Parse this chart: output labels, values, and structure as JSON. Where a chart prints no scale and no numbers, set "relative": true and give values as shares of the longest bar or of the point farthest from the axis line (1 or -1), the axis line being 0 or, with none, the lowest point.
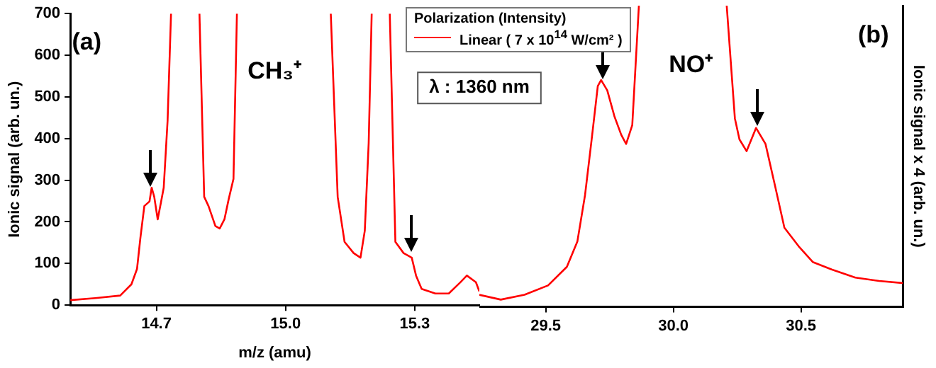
{
  "chart_data": [
    {
      "type": "line",
      "ylabel": "Ionic signal (arb. un.)",
      "xlabel": "m/z (amu)",
      "legend": "top right",
      "legend_title": "Polarization (Intensity)",
      "grid": false,
      "marker": "none",
      "annotations": [
        "(a)",
        "CH₃⁺",
        "λ : 1360 nm"
      ],
      "xlim": [
        14.5,
        15.45
      ],
      "xticks": [
        14.7,
        {
          "value": 15.0,
          "label": "15.0"
        },
        15.3
      ],
      "ylim": [
        0,
        700
      ],
      "yticks": [
        0,
        100,
        200,
        300,
        400,
        500,
        600,
        700
      ],
      "series": [
        {
          "name": "Linear ( 7 x 10$^{14}$ W/cm² )",
          "color": "#ff0000",
          "x": [
            14.5,
            14.558,
            14.616,
            14.642,
            14.655,
            14.663,
            14.672,
            14.684,
            14.689,
            14.695,
            14.703,
            14.711,
            14.717,
            14.726,
            14.734,
            14.767,
            14.8,
            14.811,
            14.821,
            14.837,
            14.847,
            14.858,
            14.868,
            14.879,
            14.887,
            15.0,
            15.105,
            15.121,
            15.137,
            15.158,
            15.174,
            15.184,
            15.193,
            15.2,
            15.22,
            15.242,
            15.255,
            15.274,
            15.293,
            15.303,
            15.316,
            15.348,
            15.379,
            15.406,
            15.421,
            15.442,
            15.45
          ],
          "values": [
            12,
            17,
            23,
            50,
            87,
            163,
            238,
            249,
            282,
            260,
            206,
            249,
            282,
            443,
            700,
            null,
            700,
            260,
            238,
            190,
            184,
            206,
            255,
            303,
            700,
            null,
            700,
            260,
            152,
            125,
            114,
            179,
            389,
            700,
            null,
            700,
            152,
            125,
            114,
            71,
            39,
            28,
            28,
            55,
            71,
            55,
            33
          ]
        }
      ]
    },
    {
      "type": "line",
      "y2label": "Ionic signal x 4 (arb. un.)",
      "grid": false,
      "marker": "none",
      "tick_labels": "x",
      "annotations": [
        "(b)",
        "NO⁺"
      ],
      "xlim": [
        29.24,
        30.9
      ],
      "xticks": [
        29.5,
        {
          "value": 30.0,
          "label": "30.0"
        },
        30.5
      ],
      "relative": true,
      "series": [
        {
          "color": "#ff0000",
          "axis": "y2",
          "x": [
            29.24,
            29.324,
            29.417,
            29.509,
            29.583,
            29.624,
            29.654,
            29.68,
            29.704,
            29.717,
            29.741,
            29.769,
            29.796,
            29.815,
            29.839,
            29.865,
            30.0,
            30.209,
            30.241,
            30.259,
            30.287,
            30.324,
            30.361,
            30.398,
            30.435,
            30.491,
            30.546,
            30.62,
            30.713,
            30.806,
            30.9
          ],
          "values": [
            0.04,
            0.024,
            0.04,
            0.071,
            0.133,
            0.217,
            0.371,
            0.556,
            0.733,
            0.753,
            0.719,
            0.633,
            0.571,
            0.541,
            0.603,
            1,
            null,
            1,
            0.626,
            0.556,
            0.517,
            0.594,
            0.541,
            0.403,
            0.263,
            0.201,
            0.149,
            0.124,
            0.097,
            0.086,
            0.079
          ]
        }
      ]
    }
  ]
}
